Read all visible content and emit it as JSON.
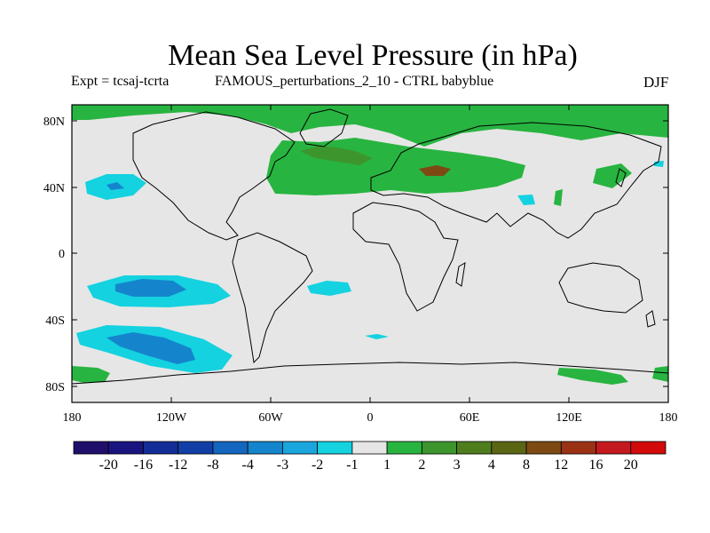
{
  "title": "Mean Sea Level Pressure (in hPa)",
  "subtitle_left": "Expt = tcsaj-tcrta",
  "subtitle_center": "FAMOUS_perturbations_2_10 - CTRL babyblue",
  "season": "DJF",
  "lat_ticks": [
    "80N",
    "40N",
    "0",
    "40S",
    "80S"
  ],
  "lon_ticks": [
    "180",
    "120W",
    "60W",
    "0",
    "60E",
    "120E",
    "180"
  ],
  "colorbar": {
    "colors": [
      "#1f0f6b",
      "#1a1480",
      "#142d96",
      "#123fa6",
      "#1466bf",
      "#1485cc",
      "#1aa6dc",
      "#14d2e0",
      "#e6e6e6",
      "#28b440",
      "#3c962d",
      "#4e7d1e",
      "#5a6614",
      "#7d4a14",
      "#9c3214",
      "#c4191e",
      "#d20a0a"
    ],
    "labels": [
      "-20",
      "-16",
      "-12",
      "-8",
      "-4",
      "-3",
      "-2",
      "-1",
      "1",
      "2",
      "3",
      "4",
      "8",
      "12",
      "16",
      "20"
    ]
  },
  "palette": {
    "background": "#e6e6e6",
    "pos_2": "#28b440",
    "pos_3": "#3c962d",
    "pos_8": "#7d4a14",
    "neg_1": "#14d2e0",
    "neg_2": "#1aa6dc",
    "neg_3": "#1485cc"
  }
}
